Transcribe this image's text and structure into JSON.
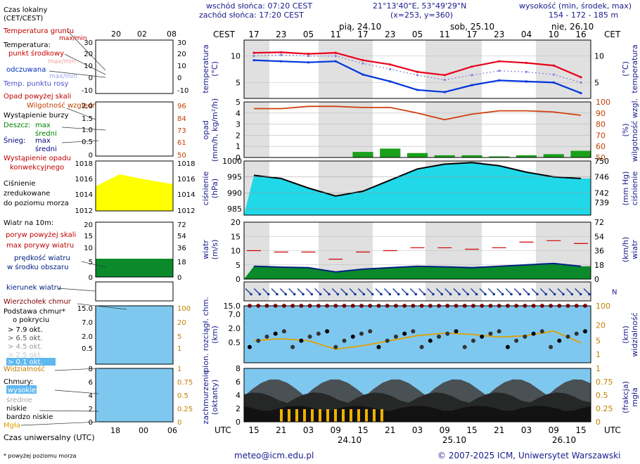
{
  "header": {
    "sunrise": "wschód słońca: 07:20 CEST",
    "sunset": "zachód słońca: 17:20 CEST",
    "coords": "21°13'40\"E, 53°49'29\"N",
    "grid": "(x=253, y=360)",
    "elev_label": "wysokość (min, środek, max)",
    "elev_values": "154 - 172 - 185 m"
  },
  "legend": {
    "local_time": "Czas lokalny",
    "local_time_zone": "(CET/CEST)",
    "local_ticks": [
      "20",
      "02",
      "08"
    ],
    "ground_temp": "Temperatura gruntu",
    "ground_temp_sub": "max/min",
    "temperature": "Temperatura:",
    "temp_mid": "punkt środkowy",
    "temp_maxmin": "max/min",
    "felt": "odczuwana",
    "felt_maxmin": "max/min",
    "dew": "Temp. punktu rosy",
    "precip_over": "Opad powyżej skali",
    "humidity": "Wilgotność względna",
    "storm": "Wystąpienie burzy",
    "rain": "Deszcz:",
    "rain_max": "max",
    "rain_mean": "średni",
    "snow": "Śnieg:",
    "snow_max": "max",
    "snow_mean": "średni",
    "precip_occ": "Wystąpienie opadu",
    "precip_occ2": "konwekcyjnego",
    "pressure1": "Ciśnienie",
    "pressure2": "zredukowane",
    "pressure3": "do poziomu morza",
    "wind": "Wiatr na 10m:",
    "gust_over": "poryw powyżej skali",
    "gust_max": "max porywy wiatru",
    "wind_speed": "prędkość wiatru",
    "wind_speed2": "w środku obszaru",
    "wind_dir": "kierunek wiatru",
    "cloud_top": "Wierzchołek chmur",
    "cloud_base": "Podstawa chmur*",
    "cloud_base2": "o pokryciu",
    "okt": [
      "> 7.9 okt.",
      "> 6.5 okt.",
      "> 4.5 okt.",
      "> 2.5 okt.",
      "> 0.1 okt."
    ],
    "visibility": "Widzialność",
    "clouds": "Chmury:",
    "cl_high": "wysokie",
    "cl_mid": "średnie",
    "cl_low": "niskie",
    "cl_vlow": "bardzo niskie",
    "fog": "Mgła",
    "utc": "Czas uniwersalny (UTC)",
    "utc_ticks": [
      "18",
      "00",
      "06"
    ],
    "footnote": "* powyżej poziomu morza"
  },
  "axes": {
    "cest": "CEST",
    "cet": "CET",
    "utc": "UTC",
    "top_ticks": [
      "17",
      "23",
      "05",
      "11",
      "17",
      "23",
      "05",
      "11",
      "17",
      "23",
      "04",
      "10",
      "16"
    ],
    "day_labels": [
      "pią, 24.10",
      "sob, 25.10",
      "nie, 26.10"
    ],
    "bottom_ticks": [
      "15",
      "21",
      "03",
      "09",
      "15",
      "21",
      "03",
      "09",
      "15",
      "21",
      "03",
      "09",
      "15"
    ],
    "bottom_days": [
      "24.10",
      "25.10",
      "26.10"
    ],
    "temp_left": "temperatura",
    "temp_unit": "(°C)",
    "precip_left": "opad",
    "precip_unit": "(mm/h, kg/m²/h)",
    "hum_right": "wilgotność wzgl.",
    "hum_unit": "(%)",
    "press_left": "ciśnienie",
    "press_unit": "(hPa)",
    "press_right": "ciśnienie",
    "press_unit_r": "(mm Hg)",
    "wind_left": "wiatr",
    "wind_unit": "(m/s)",
    "wind_right": "wiatr",
    "wind_unit_r": "(km/h)",
    "cloud_left": "pion. rozciągł. chm.",
    "cloud_unit": "(km)",
    "vis_right": "widzialność",
    "vis_unit": "(km)",
    "cov_left": "zachmurzenie",
    "cov_unit": "(oktanty)",
    "fog_right": "mgła",
    "fog_unit": "(frakcja)"
  },
  "footer": {
    "email": "meteo@icm.edu.pl",
    "copyright": "© 2007-2025 ICM, Uniwersytet Warszawski"
  },
  "colors": {
    "temp": "#e8001c",
    "felt": "#0033dd",
    "dew": "#8080e0",
    "humidity": "#d04010",
    "pressure_fill": "#ffff00",
    "wind_fill": "#0a8a2a",
    "wind_line": "#002080",
    "visibility": "#e0a000",
    "night": "#e0e0e0",
    "axis_blue": "#1a1a8c"
  },
  "chart_data": [
    {
      "type": "line",
      "title": "temperatura (°C)",
      "x": [
        "17",
        "23",
        "05",
        "11",
        "17",
        "23",
        "05",
        "11",
        "17",
        "23",
        "04",
        "10",
        "16"
      ],
      "ylim": [
        2,
        13
      ],
      "series": [
        {
          "name": "punkt środkowy",
          "values": [
            10.6,
            10.7,
            10.4,
            10.6,
            9.2,
            8.4,
            7.0,
            6.4,
            8.0,
            9.0,
            8.7,
            8.2,
            6.0
          ]
        },
        {
          "name": "odczuwana",
          "values": [
            9.2,
            9.0,
            8.8,
            9.0,
            6.5,
            5.2,
            3.6,
            3.2,
            4.5,
            5.4,
            5.2,
            5.0,
            3.0
          ]
        },
        {
          "name": "Temp. punktu rosy",
          "values": [
            10.0,
            10.2,
            10.0,
            10.0,
            8.6,
            7.5,
            6.4,
            5.5,
            6.4,
            7.2,
            7.0,
            6.5,
            5.0
          ]
        }
      ]
    },
    {
      "type": "bar",
      "title": "opad (mm/h, kg/m²/h)",
      "x": [
        "17",
        "23",
        "05",
        "11",
        "17",
        "23",
        "05",
        "11",
        "17",
        "23",
        "04",
        "10",
        "16"
      ],
      "ylim": [
        0,
        5
      ],
      "series": [
        {
          "name": "Deszcz średni",
          "values": [
            0,
            0,
            0,
            0,
            0.5,
            0.8,
            0.4,
            0.2,
            0.2,
            0.1,
            0.2,
            0.3,
            0.6
          ]
        },
        {
          "name": "Wilgotność względna (%)",
          "values": [
            94,
            94,
            96,
            96,
            95,
            95,
            90,
            84,
            89,
            92,
            92,
            91,
            88
          ]
        }
      ]
    },
    {
      "type": "area",
      "title": "ciśnienie (hPa)",
      "x": [
        "17",
        "23",
        "05",
        "11",
        "17",
        "23",
        "05",
        "11",
        "17",
        "23",
        "04",
        "10",
        "16"
      ],
      "ylim": [
        983,
        1000
      ],
      "series": [
        {
          "name": "Ciśnienie",
          "values": [
            995.5,
            994.5,
            991.5,
            989.0,
            990.5,
            994.0,
            997.5,
            999.0,
            999.5,
            998.5,
            996.5,
            995.0,
            994.5
          ]
        }
      ]
    },
    {
      "type": "area",
      "title": "wiatr (m/s)",
      "x": [
        "17",
        "23",
        "05",
        "11",
        "17",
        "23",
        "05",
        "11",
        "17",
        "23",
        "04",
        "10",
        "16"
      ],
      "ylim": [
        0,
        20
      ],
      "series": [
        {
          "name": "prędkość wiatru",
          "values": [
            4.5,
            4.2,
            4.0,
            2.5,
            3.5,
            4.0,
            4.5,
            4.3,
            4.0,
            4.5,
            5.0,
            5.5,
            4.5
          ]
        },
        {
          "name": "max porywy wiatru",
          "values": [
            10.0,
            9.5,
            9.5,
            7.0,
            9.5,
            10.0,
            11.0,
            11.0,
            10.5,
            11.0,
            13.0,
            13.5,
            12.5
          ]
        }
      ]
    },
    {
      "type": "line",
      "title": "widzialność (km)",
      "x": [
        "17",
        "23",
        "05",
        "11",
        "17",
        "23",
        "05",
        "11",
        "17",
        "23",
        "04",
        "10",
        "16"
      ],
      "ylim": [
        0,
        100
      ],
      "series": [
        {
          "name": "Widzialność",
          "values": [
            5,
            6,
            5,
            2,
            3,
            5,
            8,
            10,
            9,
            7,
            8,
            12,
            4
          ]
        }
      ]
    }
  ]
}
